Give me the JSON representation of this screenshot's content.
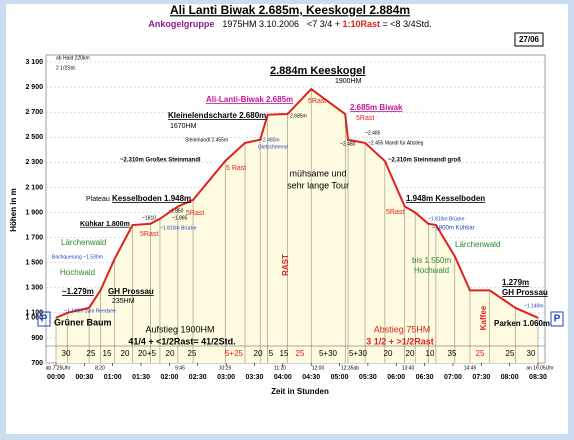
{
  "chart_data": {
    "type": "line",
    "title": "Ali Lanti Biwak 2.685m, Keeskogel 2.884m",
    "subtitle_parts": [
      "Ankogelgruppe",
      "1975HM  3.10.2006",
      "<7 3/4 + ",
      "1:10Rast",
      " = <8 3/4Std."
    ],
    "badge": "27/06",
    "x_label": "Zeit in Stunden",
    "y_label": "Höhen in m",
    "xlim": [
      0,
      510
    ],
    "ylim": [
      700,
      3100
    ],
    "xticks": [
      {
        "value": 0,
        "label": "00:00"
      },
      {
        "value": 30,
        "label": "00:30"
      },
      {
        "value": 60,
        "label": "01:00"
      },
      {
        "value": 90,
        "label": "01:30"
      },
      {
        "value": 120,
        "label": "02:00"
      },
      {
        "value": 150,
        "label": "02:30"
      },
      {
        "value": 180,
        "label": "03:00"
      },
      {
        "value": 210,
        "label": "03:30"
      },
      {
        "value": 240,
        "label": "04:00"
      },
      {
        "value": 270,
        "label": "04:30"
      },
      {
        "value": 300,
        "label": "05:00"
      },
      {
        "value": 330,
        "label": "05:30"
      },
      {
        "value": 360,
        "label": "06:00"
      },
      {
        "value": 390,
        "label": "06:30"
      },
      {
        "value": 420,
        "label": "07:00"
      },
      {
        "value": 450,
        "label": "07:30"
      },
      {
        "value": 480,
        "label": "08:00"
      },
      {
        "value": 510,
        "label": "08:30"
      }
    ],
    "yticks": [
      700,
      900,
      {
        "value": 1060,
        "label": "1 060"
      },
      {
        "value": 1100,
        "label": "1 100"
      },
      {
        "value": 1300,
        "label": "1 300"
      },
      {
        "value": 1500,
        "label": "1 500"
      },
      {
        "value": 1700,
        "label": "1 700"
      },
      {
        "value": 1900,
        "label": "1 900"
      },
      {
        "value": 2100,
        "label": "2 100"
      },
      {
        "value": 2300,
        "label": "2 300"
      },
      {
        "value": 2500,
        "label": "2 500"
      },
      {
        "value": 2700,
        "label": "2 700"
      },
      {
        "value": 2900,
        "label": "2 900"
      },
      {
        "value": 3100,
        "label": "3 100"
      }
    ],
    "grid": true,
    "series": [
      {
        "name": "Höhenprofil",
        "color": "#e0201c",
        "x": [
          0,
          12,
          35,
          47,
          62,
          81,
          100,
          110,
          129,
          145,
          179,
          200,
          216,
          224,
          245,
          270,
          306,
          309,
          327,
          348,
          369,
          380,
          394,
          402,
          422,
          438,
          459,
          486,
          510
        ],
        "values": [
          1060,
          1100,
          1140,
          1279,
          1530,
          1800,
          1810,
          1850,
          1948,
          2000,
          2310,
          2455,
          2480,
          2680,
          2685,
          2884,
          2685,
          2480,
          2455,
          2310,
          1948,
          1900,
          1810,
          1800,
          1550,
          1279,
          1279,
          1140,
          1060
        ]
      }
    ],
    "annotations": [
      "ab Haid 220km",
      "2 1/2Std.",
      "2.884m Keeskogel",
      "1900HM",
      "Ali-Lanti-Biwak 2.685m",
      "2.685m Biwak",
      "Kleinelendscharte 2.680m",
      "1670HM",
      "Steinmandl 2.455m",
      "~2.480m",
      "Gletscherrest",
      "2,685m",
      "5Rast",
      "5Rast",
      "~2.310m Großes Steinmandl",
      "5 Rast",
      "mühsame und",
      "sehr lange Tour",
      "~2.485",
      "~2.455 Mandl für Abstieg",
      "~2.480",
      "~2.310m Steinmandl groß",
      "Plateau",
      "Kesselboden 1.948m",
      "1.948m Kesselboden",
      "Kühkar 1.800m",
      "~1810",
      "~1.850",
      "~1.885",
      "5Rast",
      "5Rast",
      "~1.810m Brücke",
      "5Rast",
      "~1.810m Brücke",
      "~1800m Kühkar",
      "Lärchenwald",
      "Lärchenwald",
      "Bachquerung ~1.530m",
      "Hochwald",
      "bis 1.550m",
      "Hochwald",
      "~1.279m",
      "GH Prossau",
      "235HM",
      "~1.140m zum Reedsee",
      "Grüner Baum",
      "1.279m",
      "GH Prossau",
      "~1.140m",
      "Parken 1.060m",
      "Aufstieg 1900HM",
      "41/4 + <1/2Rast= 41/2Std.",
      "Abstieg 75HM",
      "3 1/2 + >1/2Rast",
      "RAST",
      "Kaffee",
      "P",
      "P"
    ],
    "segment_times": [
      "30",
      "25",
      "15",
      "20",
      "20+5",
      "20",
      "25",
      "5+25",
      "20",
      "5",
      "15",
      "25",
      "5+30",
      "5+30",
      "20",
      "20",
      "10",
      "35",
      "25",
      "25",
      "30"
    ],
    "clock_times": [
      "ab 7:25Uhr",
      "8:20",
      "9:45",
      "10:25",
      "11:20",
      "12:00",
      "12:35ab",
      "13:40",
      "14:45",
      "an 16:05Uhr"
    ]
  }
}
